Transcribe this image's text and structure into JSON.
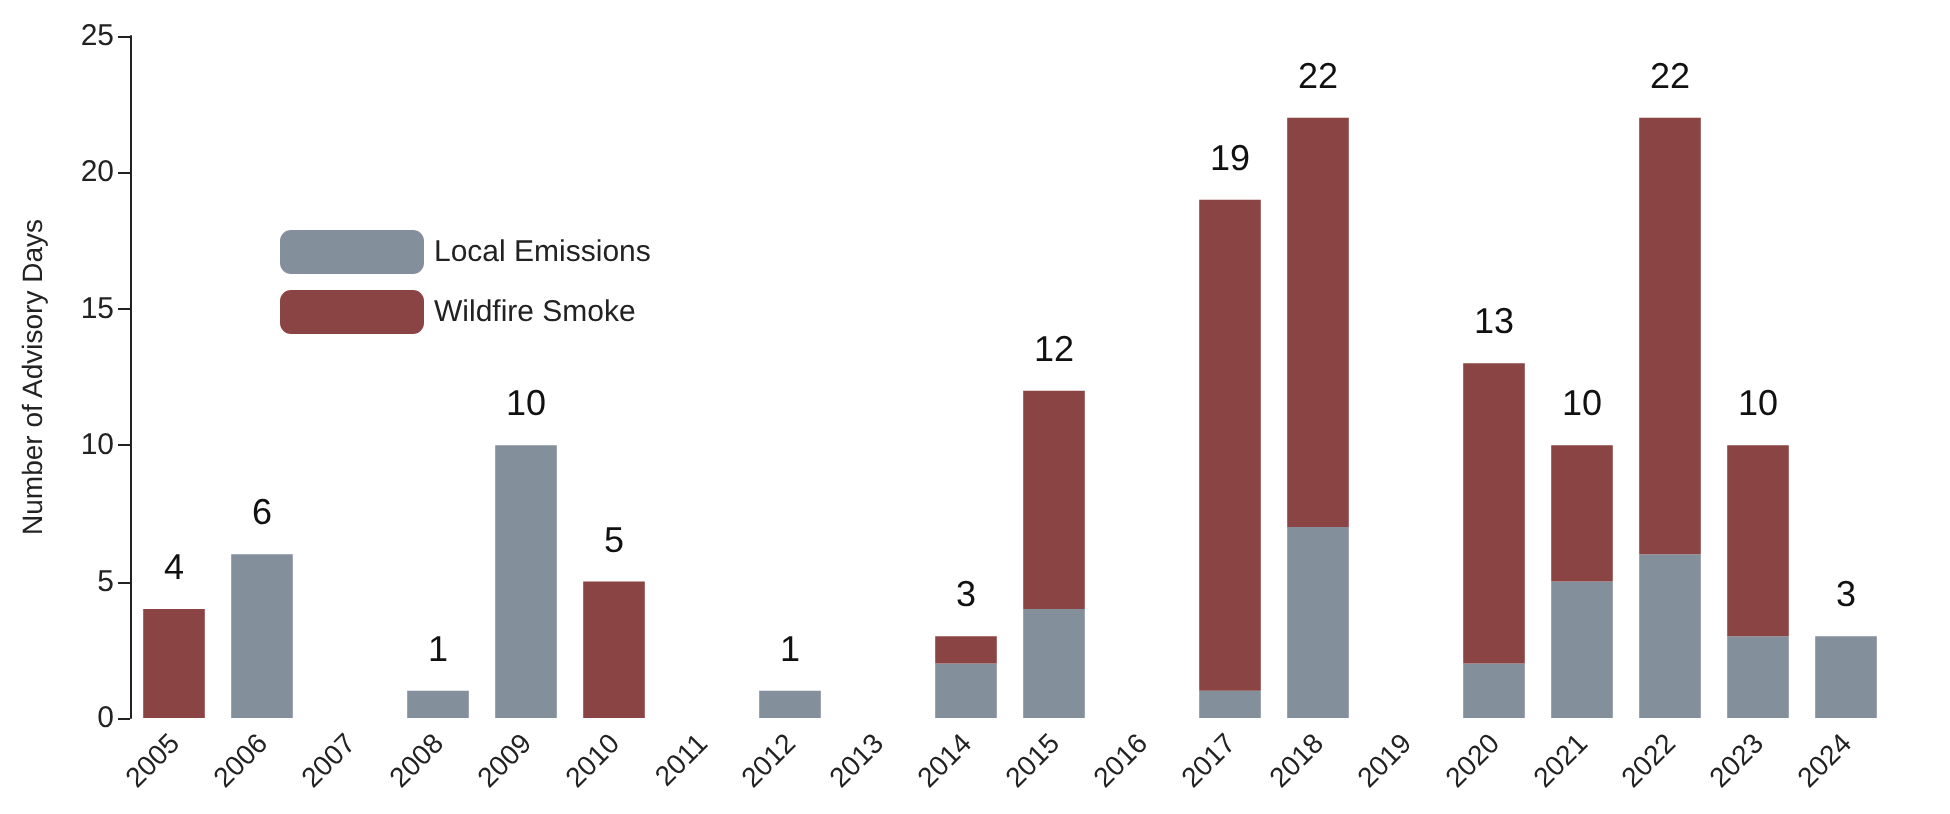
{
  "chart_data": {
    "type": "bar",
    "stacked": true,
    "ylabel": "Number of Advisory Days",
    "categories": [
      "2005",
      "2006",
      "2007",
      "2008",
      "2009",
      "2010",
      "2011",
      "2012",
      "2013",
      "2014",
      "2015",
      "2016",
      "2017",
      "2018",
      "2019",
      "2020",
      "2021",
      "2022",
      "2023",
      "2024"
    ],
    "series": [
      {
        "name": "Local Emissions",
        "color": "#848f9c",
        "values": [
          0,
          6,
          0,
          1,
          10,
          0,
          0,
          1,
          0,
          2,
          4,
          0,
          1,
          7,
          0,
          2,
          5,
          6,
          3,
          3
        ]
      },
      {
        "name": "Wildfire Smoke",
        "color": "#8b4444",
        "values": [
          4,
          0,
          0,
          0,
          0,
          5,
          0,
          0,
          0,
          1,
          8,
          0,
          18,
          15,
          0,
          11,
          5,
          16,
          7,
          0
        ]
      }
    ],
    "totals": [
      "4",
      "6",
      null,
      "1",
      "10",
      "5",
      null,
      "1",
      null,
      "3",
      "12",
      null,
      "19",
      "22",
      null,
      "13",
      "10",
      "22",
      "10",
      "3"
    ],
    "ylim": [
      0,
      25
    ],
    "yticks": [
      0,
      5,
      10,
      15,
      20,
      25
    ],
    "grid": false,
    "legend": "top left"
  }
}
